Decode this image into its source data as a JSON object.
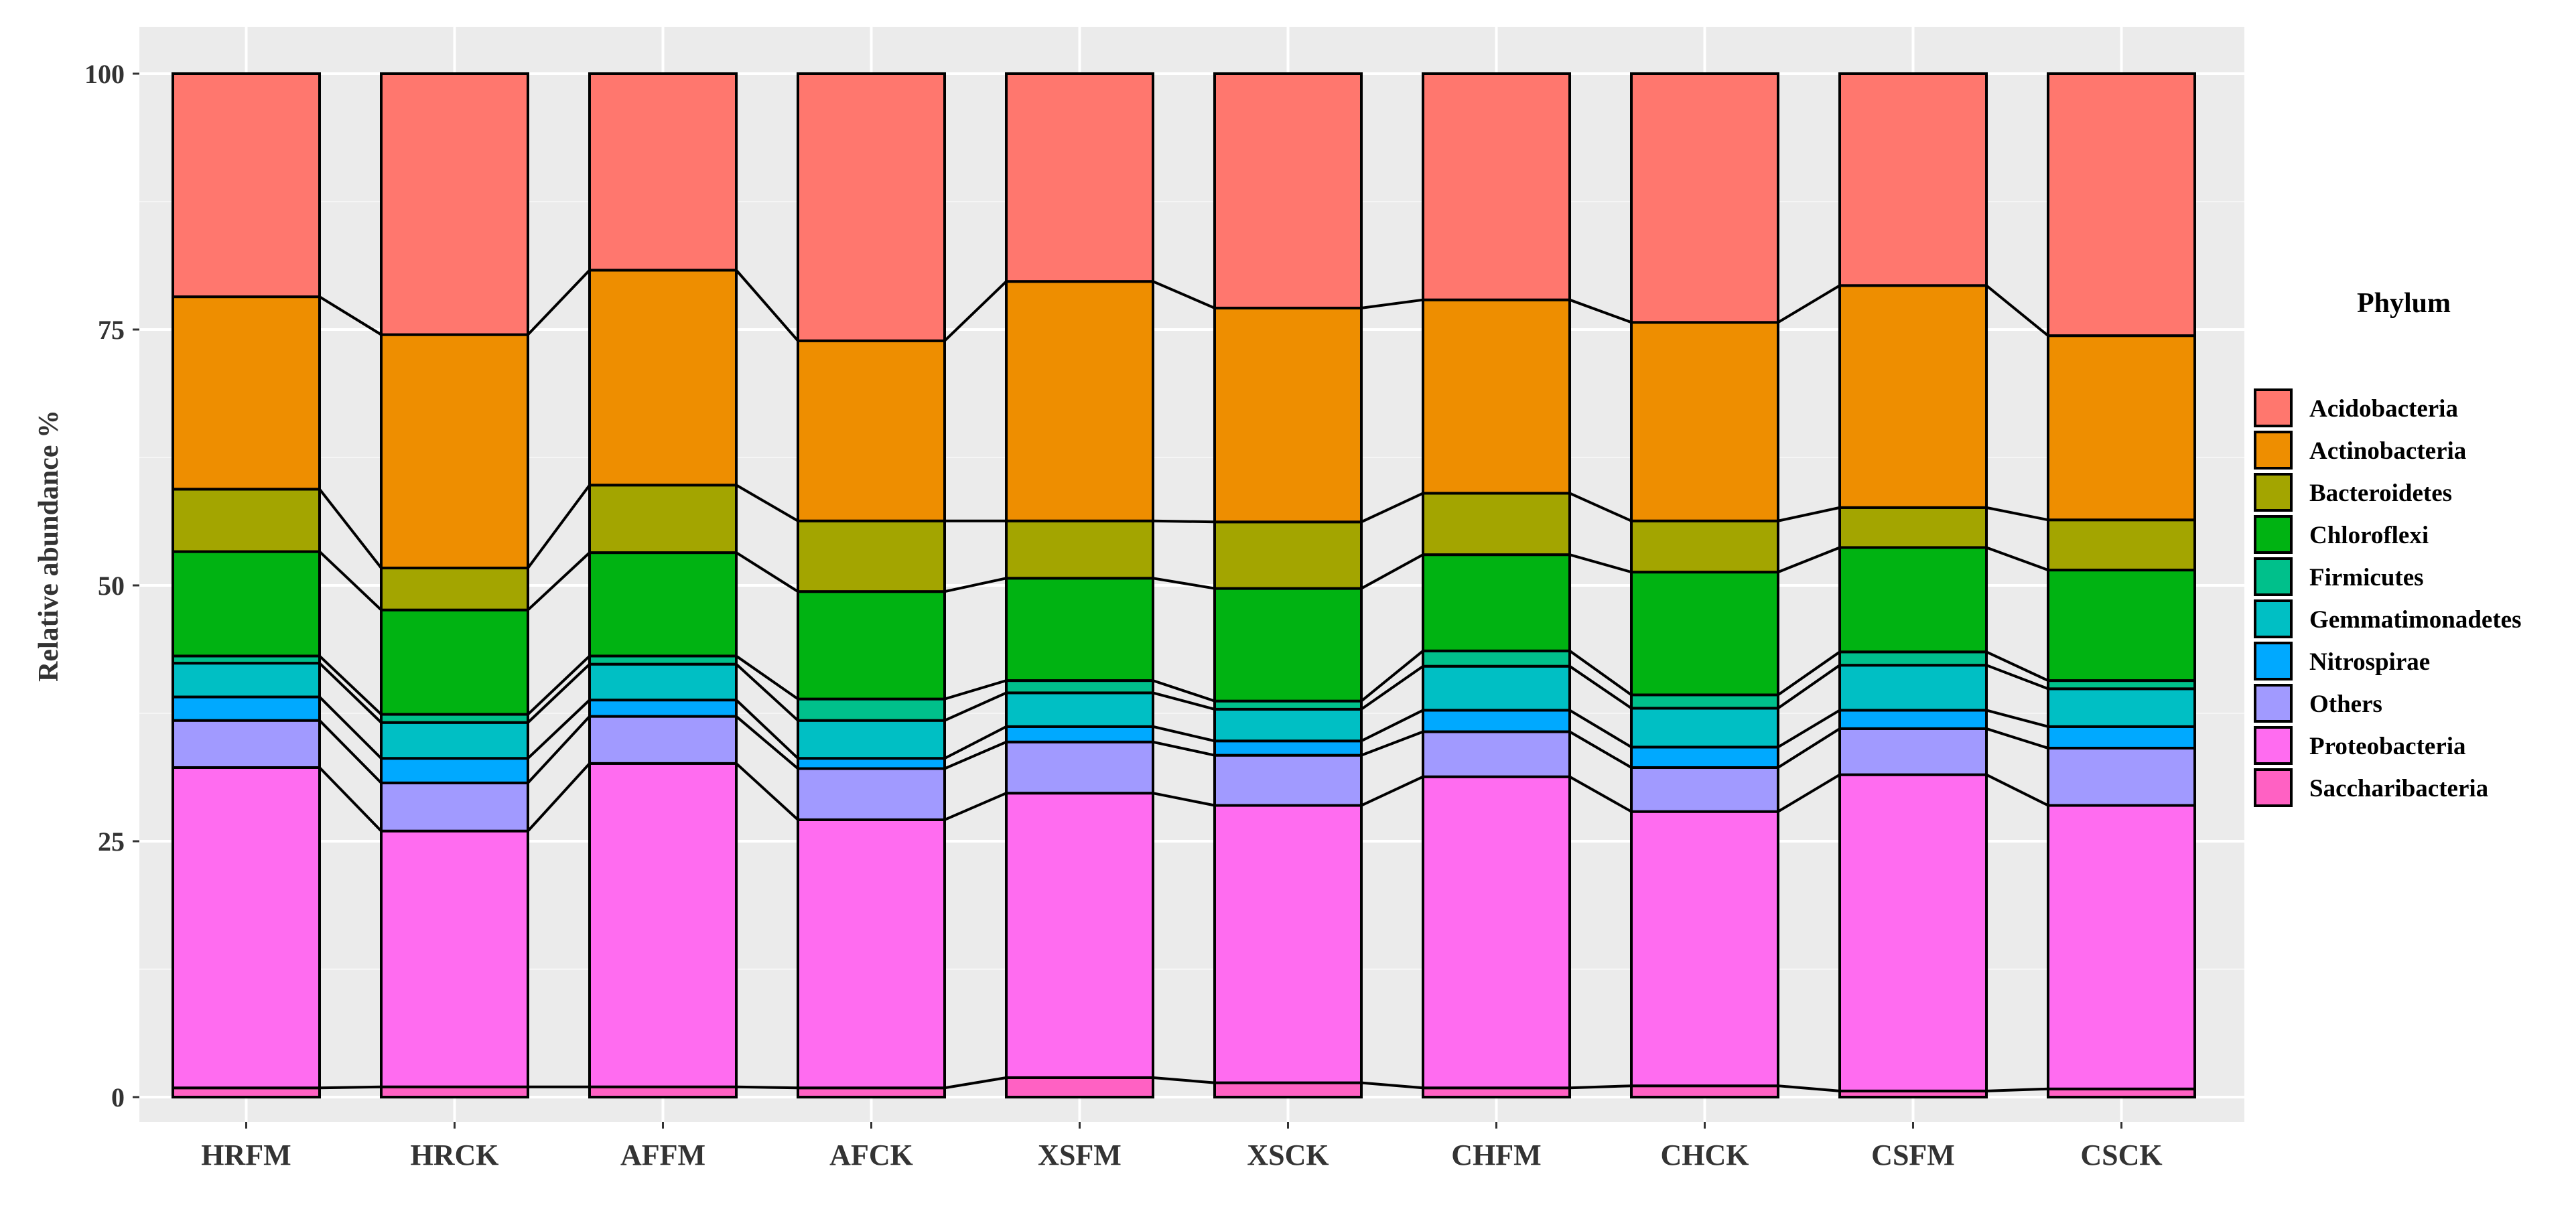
{
  "chart_data": {
    "type": "bar",
    "stacked": true,
    "title": "",
    "xlabel": "",
    "ylabel": "Relative abundance  %",
    "ylim": [
      0,
      100
    ],
    "yticks": [
      "0",
      "25",
      "50",
      "75",
      "100"
    ],
    "categories": [
      "HRFM",
      "HRCK",
      "AFFM",
      "AFCK",
      "XSFM",
      "XSCK",
      "CHFM",
      "CHCK",
      "CSFM",
      "CSCK"
    ],
    "legend_title": "Phylum",
    "legend_position": "right",
    "series": [
      {
        "name": "Saccharibacteria",
        "color": "#FF61C3",
        "values": [
          0.9,
          1.0,
          1.0,
          0.9,
          1.9,
          1.4,
          0.9,
          1.1,
          0.6,
          0.8
        ]
      },
      {
        "name": "Proteobacteria",
        "color": "#FF6CF0",
        "values": [
          31.3,
          25.0,
          31.6,
          26.2,
          27.8,
          27.1,
          30.4,
          26.8,
          30.9,
          27.7
        ]
      },
      {
        "name": "Others",
        "color": "#A19AFF",
        "values": [
          4.6,
          4.7,
          4.6,
          5.0,
          5.0,
          4.9,
          4.4,
          4.3,
          4.5,
          5.6
        ]
      },
      {
        "name": "Nitrospirae",
        "color": "#00A9FF",
        "values": [
          2.3,
          2.4,
          1.6,
          1.0,
          1.5,
          1.4,
          2.1,
          2.0,
          1.8,
          2.1
        ]
      },
      {
        "name": "Gemmatimonadetes",
        "color": "#00BFC4",
        "values": [
          3.3,
          3.5,
          3.5,
          3.7,
          3.3,
          3.1,
          4.3,
          3.8,
          4.4,
          3.7
        ]
      },
      {
        "name": "Firmicutes",
        "color": "#00C08B",
        "values": [
          0.7,
          0.8,
          0.8,
          2.1,
          1.2,
          0.8,
          1.5,
          1.3,
          1.3,
          0.8
        ]
      },
      {
        "name": "Chloroflexi",
        "color": "#00B312",
        "values": [
          10.2,
          10.2,
          10.1,
          10.5,
          10.0,
          11.0,
          9.4,
          12.0,
          10.2,
          10.8
        ]
      },
      {
        "name": "Bacteroidetes",
        "color": "#A3A500",
        "values": [
          6.1,
          4.1,
          6.6,
          6.9,
          5.6,
          6.5,
          6.0,
          5.0,
          3.9,
          4.9
        ]
      },
      {
        "name": "Actinobacteria",
        "color": "#EE8E00",
        "values": [
          18.8,
          22.8,
          21.0,
          17.6,
          23.4,
          20.9,
          18.9,
          19.4,
          21.7,
          18.0
        ]
      },
      {
        "name": "Acidobacteria",
        "color": "#FF776E",
        "values": [
          21.8,
          25.5,
          19.2,
          26.1,
          20.3,
          22.9,
          22.1,
          24.3,
          20.7,
          25.6
        ]
      }
    ]
  }
}
